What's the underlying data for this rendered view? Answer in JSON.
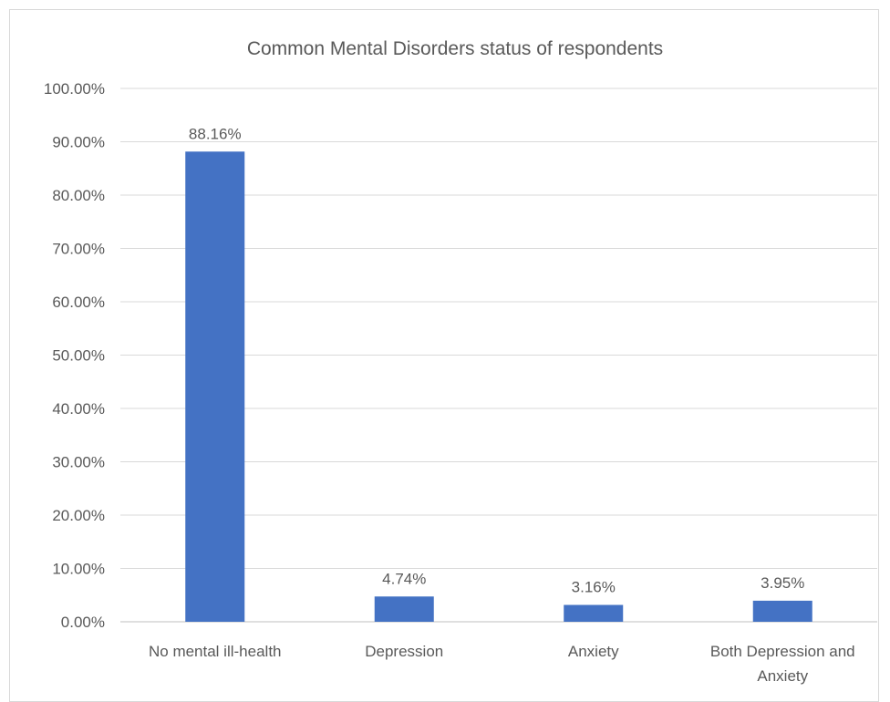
{
  "chart_data": {
    "type": "bar",
    "title": "Common Mental Disorders status of respondents",
    "xlabel": "",
    "ylabel": "",
    "categories": [
      [
        "No mental ill-health"
      ],
      [
        "Depression"
      ],
      [
        "Anxiety"
      ],
      [
        "Both Depression and",
        "Anxiety"
      ]
    ],
    "values": [
      88.16,
      4.74,
      3.16,
      3.95
    ],
    "data_labels": [
      "88.16%",
      "4.74%",
      "3.16%",
      "3.95%"
    ],
    "ylim": [
      0,
      100
    ],
    "yticks": [
      0,
      10,
      20,
      30,
      40,
      50,
      60,
      70,
      80,
      90,
      100
    ],
    "ytick_labels": [
      "0.00%",
      "10.00%",
      "20.00%",
      "30.00%",
      "40.00%",
      "50.00%",
      "60.00%",
      "70.00%",
      "80.00%",
      "90.00%",
      "100.00%"
    ],
    "grid": true,
    "legend": "none",
    "bar_color": "#4472C4"
  }
}
